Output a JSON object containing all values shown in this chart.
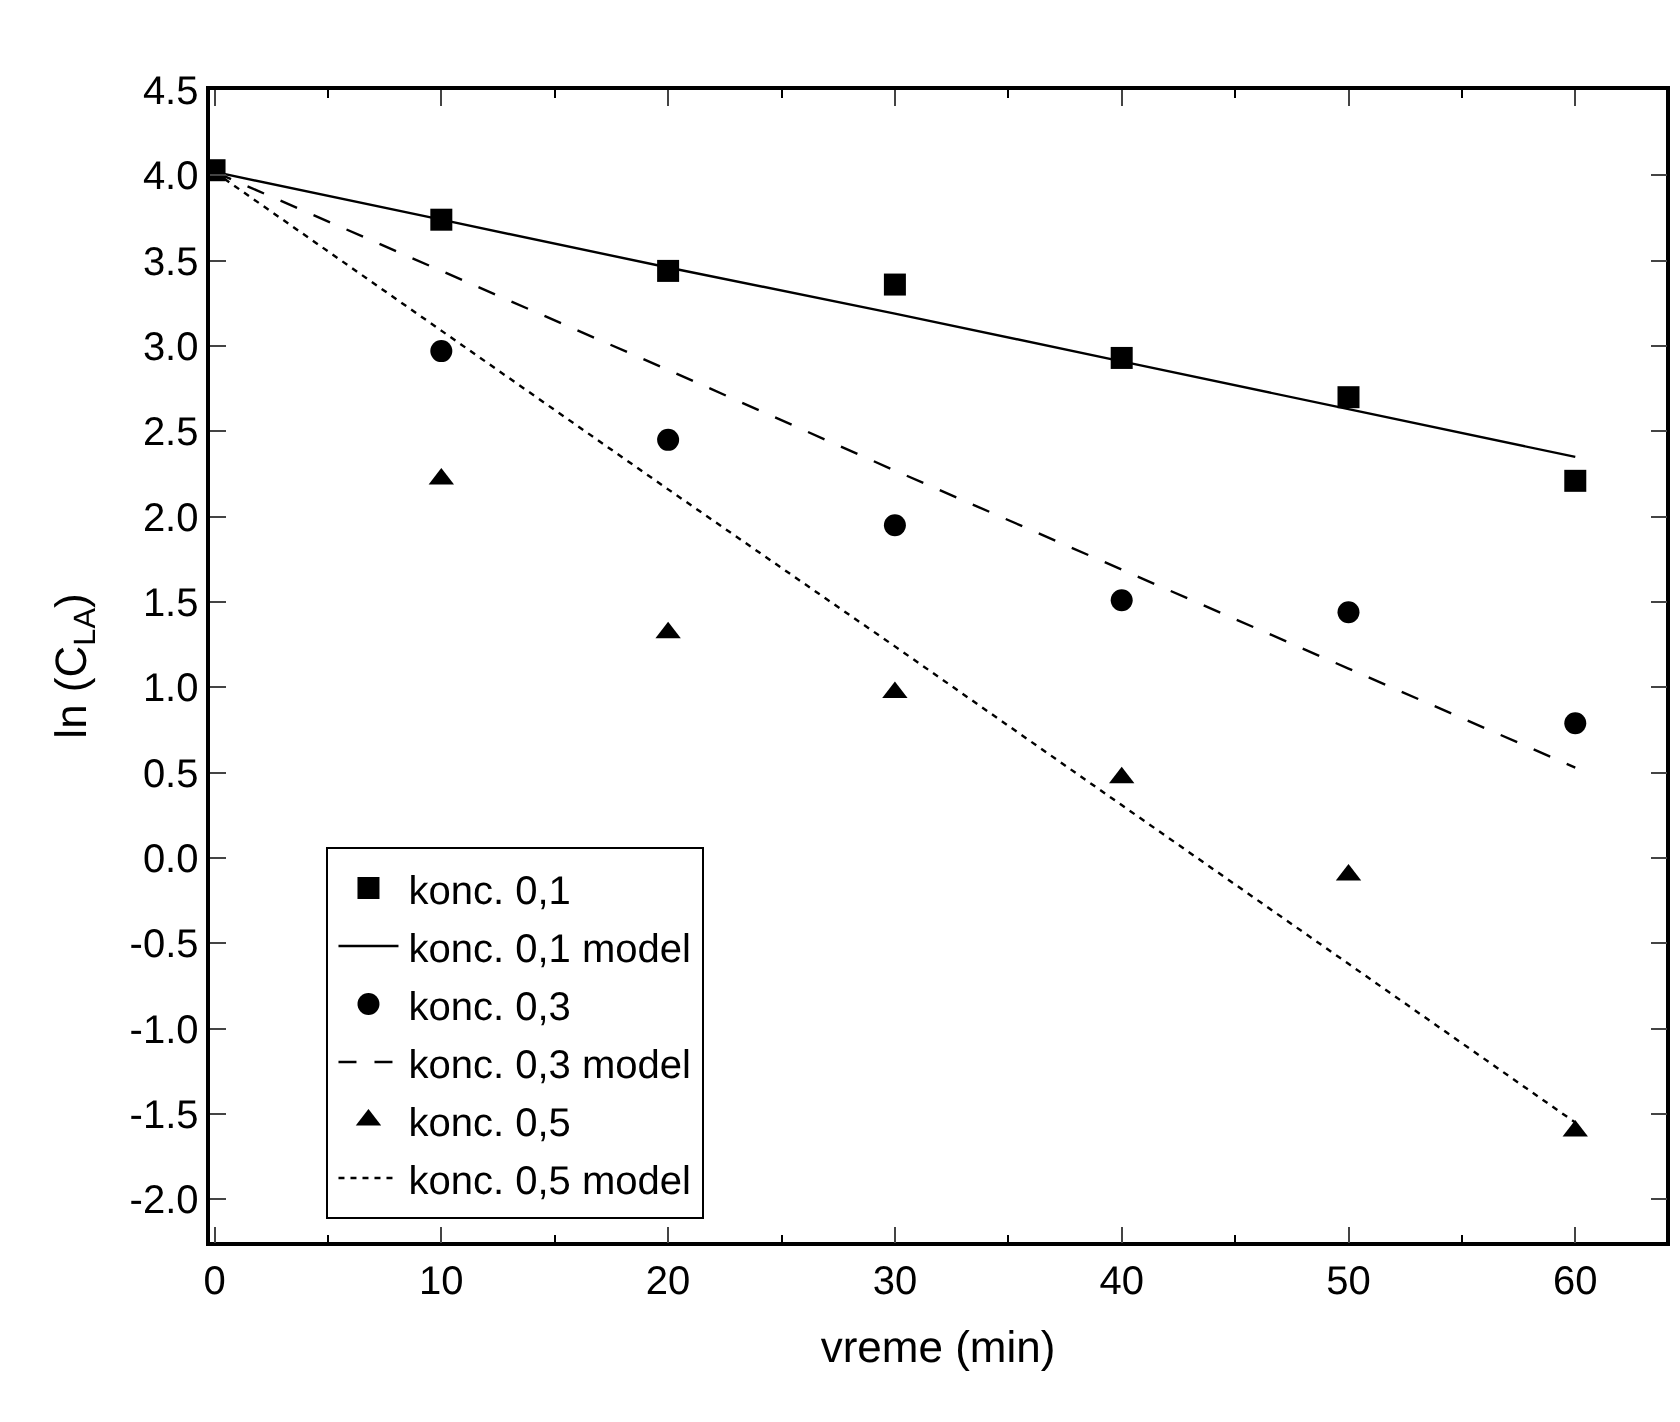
{
  "chart_data": {
    "type": "scatter",
    "xlabel": "vreme (min)",
    "ylabel": "ln (C$_{LA}$)",
    "x": [
      0,
      10,
      20,
      30,
      40,
      50,
      60
    ],
    "series": [
      {
        "name": "konc. 0,1",
        "marker": "square",
        "color": "#000000",
        "values": [
          4.03,
          3.74,
          3.44,
          3.36,
          2.93,
          2.7,
          2.21
        ]
      },
      {
        "name": "konc. 0,1 model",
        "type": "line",
        "line_style": "solid",
        "color": "#000000",
        "values": [
          4.02,
          3.74,
          3.46,
          3.19,
          2.91,
          2.63,
          2.35
        ]
      },
      {
        "name": "konc. 0,3",
        "marker": "circle",
        "color": "#000000",
        "values": [
          null,
          2.97,
          2.45,
          1.95,
          1.51,
          1.44,
          0.79
        ]
      },
      {
        "name": "konc. 0,3 model",
        "type": "line",
        "line_style": "dashed",
        "color": "#000000",
        "values": [
          4.02,
          3.44,
          2.86,
          2.27,
          1.69,
          1.11,
          0.53
        ]
      },
      {
        "name": "konc. 0,5",
        "marker": "triangle",
        "color": "#000000",
        "values": [
          null,
          2.22,
          1.32,
          0.97,
          0.47,
          -0.1,
          -1.6
        ]
      },
      {
        "name": "konc. 0,5 model",
        "type": "line",
        "line_style": "dotted",
        "color": "#000000",
        "values": [
          4.02,
          3.09,
          2.16,
          1.24,
          0.31,
          -0.62,
          -1.55
        ]
      }
    ],
    "xlim": [
      -0.2,
      64
    ],
    "xticks": [
      0,
      10,
      20,
      30,
      40,
      50,
      60
    ],
    "ylim": [
      -2.25,
      4.5
    ],
    "yticks": [
      {
        "value": -2.0,
        "label": "-2.0"
      },
      {
        "value": -1.5,
        "label": "-1.5"
      },
      {
        "value": -1.0,
        "label": "-1.0"
      },
      {
        "value": -0.5,
        "label": "-0.5"
      },
      {
        "value": 0,
        "label": "0.0"
      },
      {
        "value": 0.5,
        "label": "0.5"
      },
      {
        "value": 1.0,
        "label": "1.0"
      },
      {
        "value": 1.5,
        "label": "1.5"
      },
      {
        "value": 2.0,
        "label": "2.0"
      },
      {
        "value": 2.5,
        "label": "2.5"
      },
      {
        "value": 3.0,
        "label": "3.0"
      },
      {
        "value": 3.5,
        "label": "3.5"
      },
      {
        "value": 4.0,
        "label": "4.0"
      },
      {
        "value": 4.5,
        "label": "4.5"
      }
    ],
    "legend": "bottom left"
  }
}
